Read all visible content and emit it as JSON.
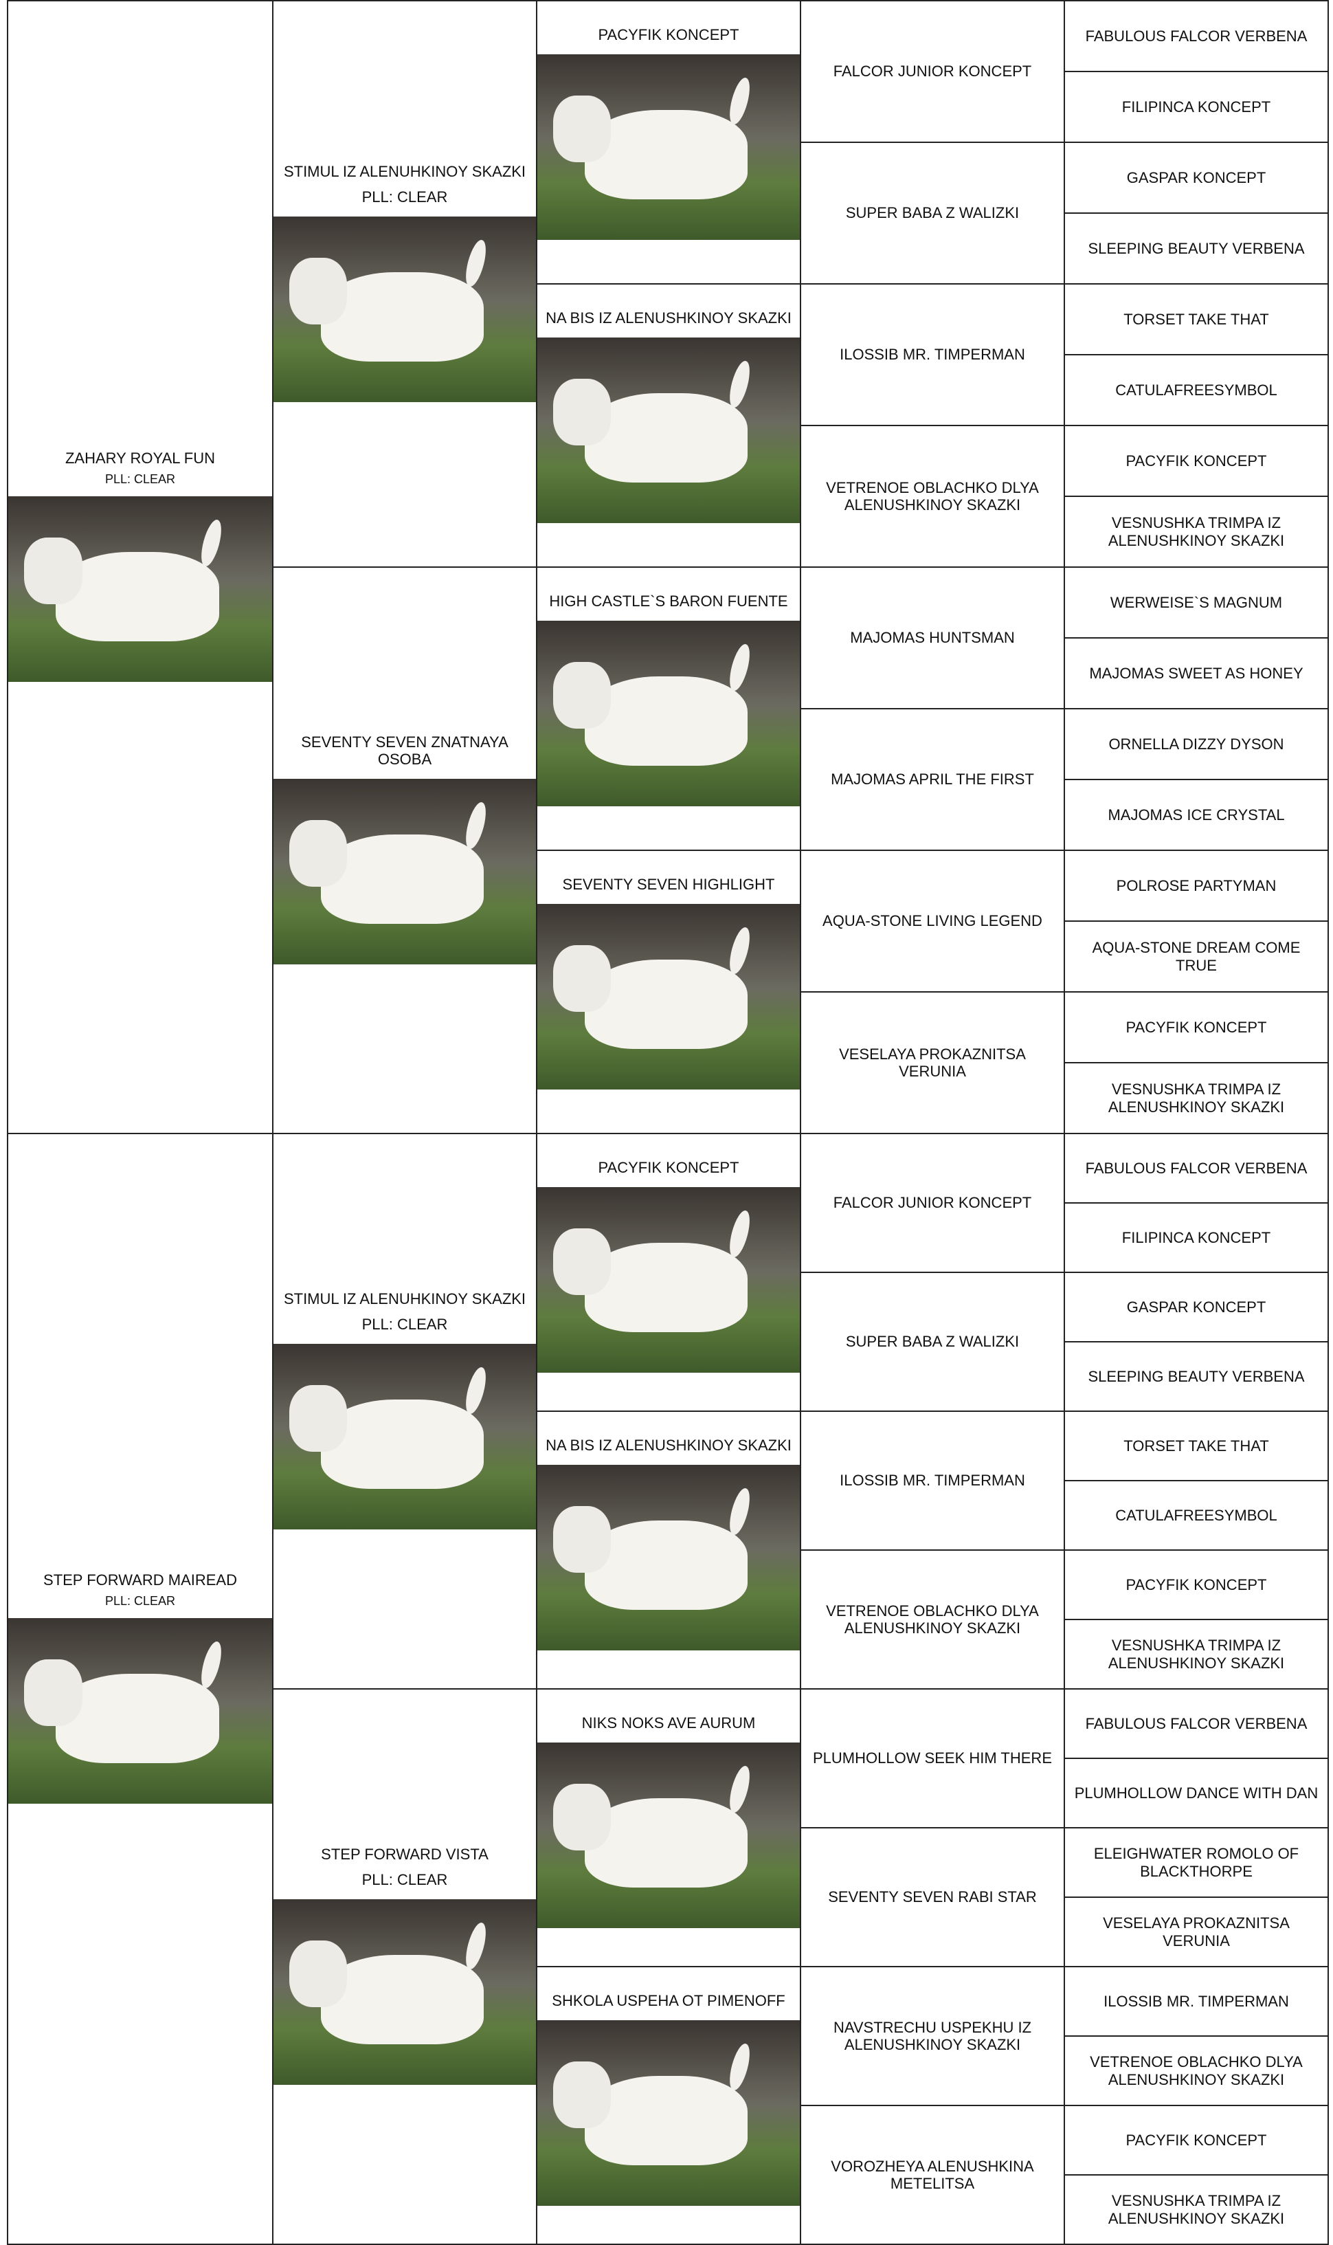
{
  "pedigrees": [
    {
      "dog": {
        "name": "ZAHARY ROYAL FUN",
        "pll": "PLL: CLEAR"
      },
      "parents": [
        {
          "name": "STIMUL IZ ALENUHKINOY SKAZKI",
          "pll": "PLL: CLEAR"
        },
        {
          "name": "SEVENTY SEVEN ZNATNAYA OSOBA"
        }
      ],
      "grandparents": [
        "PACYFIK KONCEPT",
        "NA BIS IZ ALENUSHKINOY SKAZKI",
        "HIGH CASTLE`S BARON FUENTE",
        "SEVENTY SEVEN HIGHLIGHT"
      ],
      "great_grandparents": [
        "FALCOR JUNIOR KONCEPT",
        "SUPER BABA Z WALIZKI",
        "ILOSSIB MR. TIMPERMAN",
        "VETRENOE OBLACHKO DLYA ALENUSHKINOY SKAZKI",
        "MAJOMAS HUNTSMAN",
        "MAJOMAS APRIL THE FIRST",
        "AQUA-STONE LIVING LEGEND",
        "VESELAYA PROKAZNITSA VERUNIA"
      ],
      "great_great_grandparents": [
        "FABULOUS FALCOR VERBENA",
        "FILIPINCA KONCEPT",
        "GASPAR KONCEPT",
        "SLEEPING BEAUTY VERBENA",
        "TORSET TAKE THAT",
        "CATULAFREESYMBOL",
        "PACYFIK KONCEPT",
        "VESNUSHKA TRIMPA IZ ALENUSHKINOY SKAZKI",
        "WERWEISE`S MAGNUM",
        "MAJOMAS SWEET AS HONEY",
        "ORNELLA DIZZY DYSON",
        "MAJOMAS ICE CRYSTAL",
        "POLROSE PARTYMAN",
        "AQUA-STONE DREAM COME TRUE",
        "PACYFIK KONCEPT",
        "VESNUSHKA TRIMPA IZ ALENUSHKINOY SKAZKI"
      ]
    },
    {
      "dog": {
        "name": "STEP FORWARD MAIREAD",
        "pll": "PLL: CLEAR"
      },
      "parents": [
        {
          "name": "STIMUL IZ ALENUHKINOY SKAZKI",
          "pll": "PLL: CLEAR"
        },
        {
          "name": "STEP FORWARD VISTA",
          "pll": "PLL: CLEAR"
        }
      ],
      "grandparents": [
        "PACYFIK KONCEPT",
        "NA BIS IZ ALENUSHKINOY SKAZKI",
        "NIKS NOKS AVE AURUM",
        "SHKOLA USPEHA OT PIMENOFF"
      ],
      "great_grandparents": [
        "FALCOR JUNIOR KONCEPT",
        "SUPER BABA Z WALIZKI",
        "ILOSSIB MR. TIMPERMAN",
        "VETRENOE OBLACHKO DLYA ALENUSHKINOY SKAZKI",
        "PLUMHOLLOW SEEK HIM THERE",
        "SEVENTY SEVEN RABI STAR",
        "NAVSTRECHU USPEKHU IZ ALENUSHKINOY SKAZKI",
        "VOROZHEYA ALENUSHKINA METELITSA"
      ],
      "great_great_grandparents": [
        "FABULOUS FALCOR VERBENA",
        "FILIPINCA KONCEPT",
        "GASPAR KONCEPT",
        "SLEEPING BEAUTY VERBENA",
        "TORSET TAKE THAT",
        "CATULAFREESYMBOL",
        "PACYFIK KONCEPT",
        "VESNUSHKA TRIMPA IZ ALENUSHKINOY SKAZKI",
        "FABULOUS FALCOR VERBENA",
        "PLUMHOLLOW DANCE WITH DAN",
        "ELEIGHWATER ROMOLO OF BLACKTHORPE",
        "VESELAYA PROKAZNITSA VERUNIA",
        "ILOSSIB MR. TIMPERMAN",
        "VETRENOE OBLACHKO DLYA ALENUSHKINOY SKAZKI",
        "PACYFIK KONCEPT",
        "VESNUSHKA TRIMPA IZ ALENUSHKINOY SKAZKI"
      ]
    }
  ]
}
